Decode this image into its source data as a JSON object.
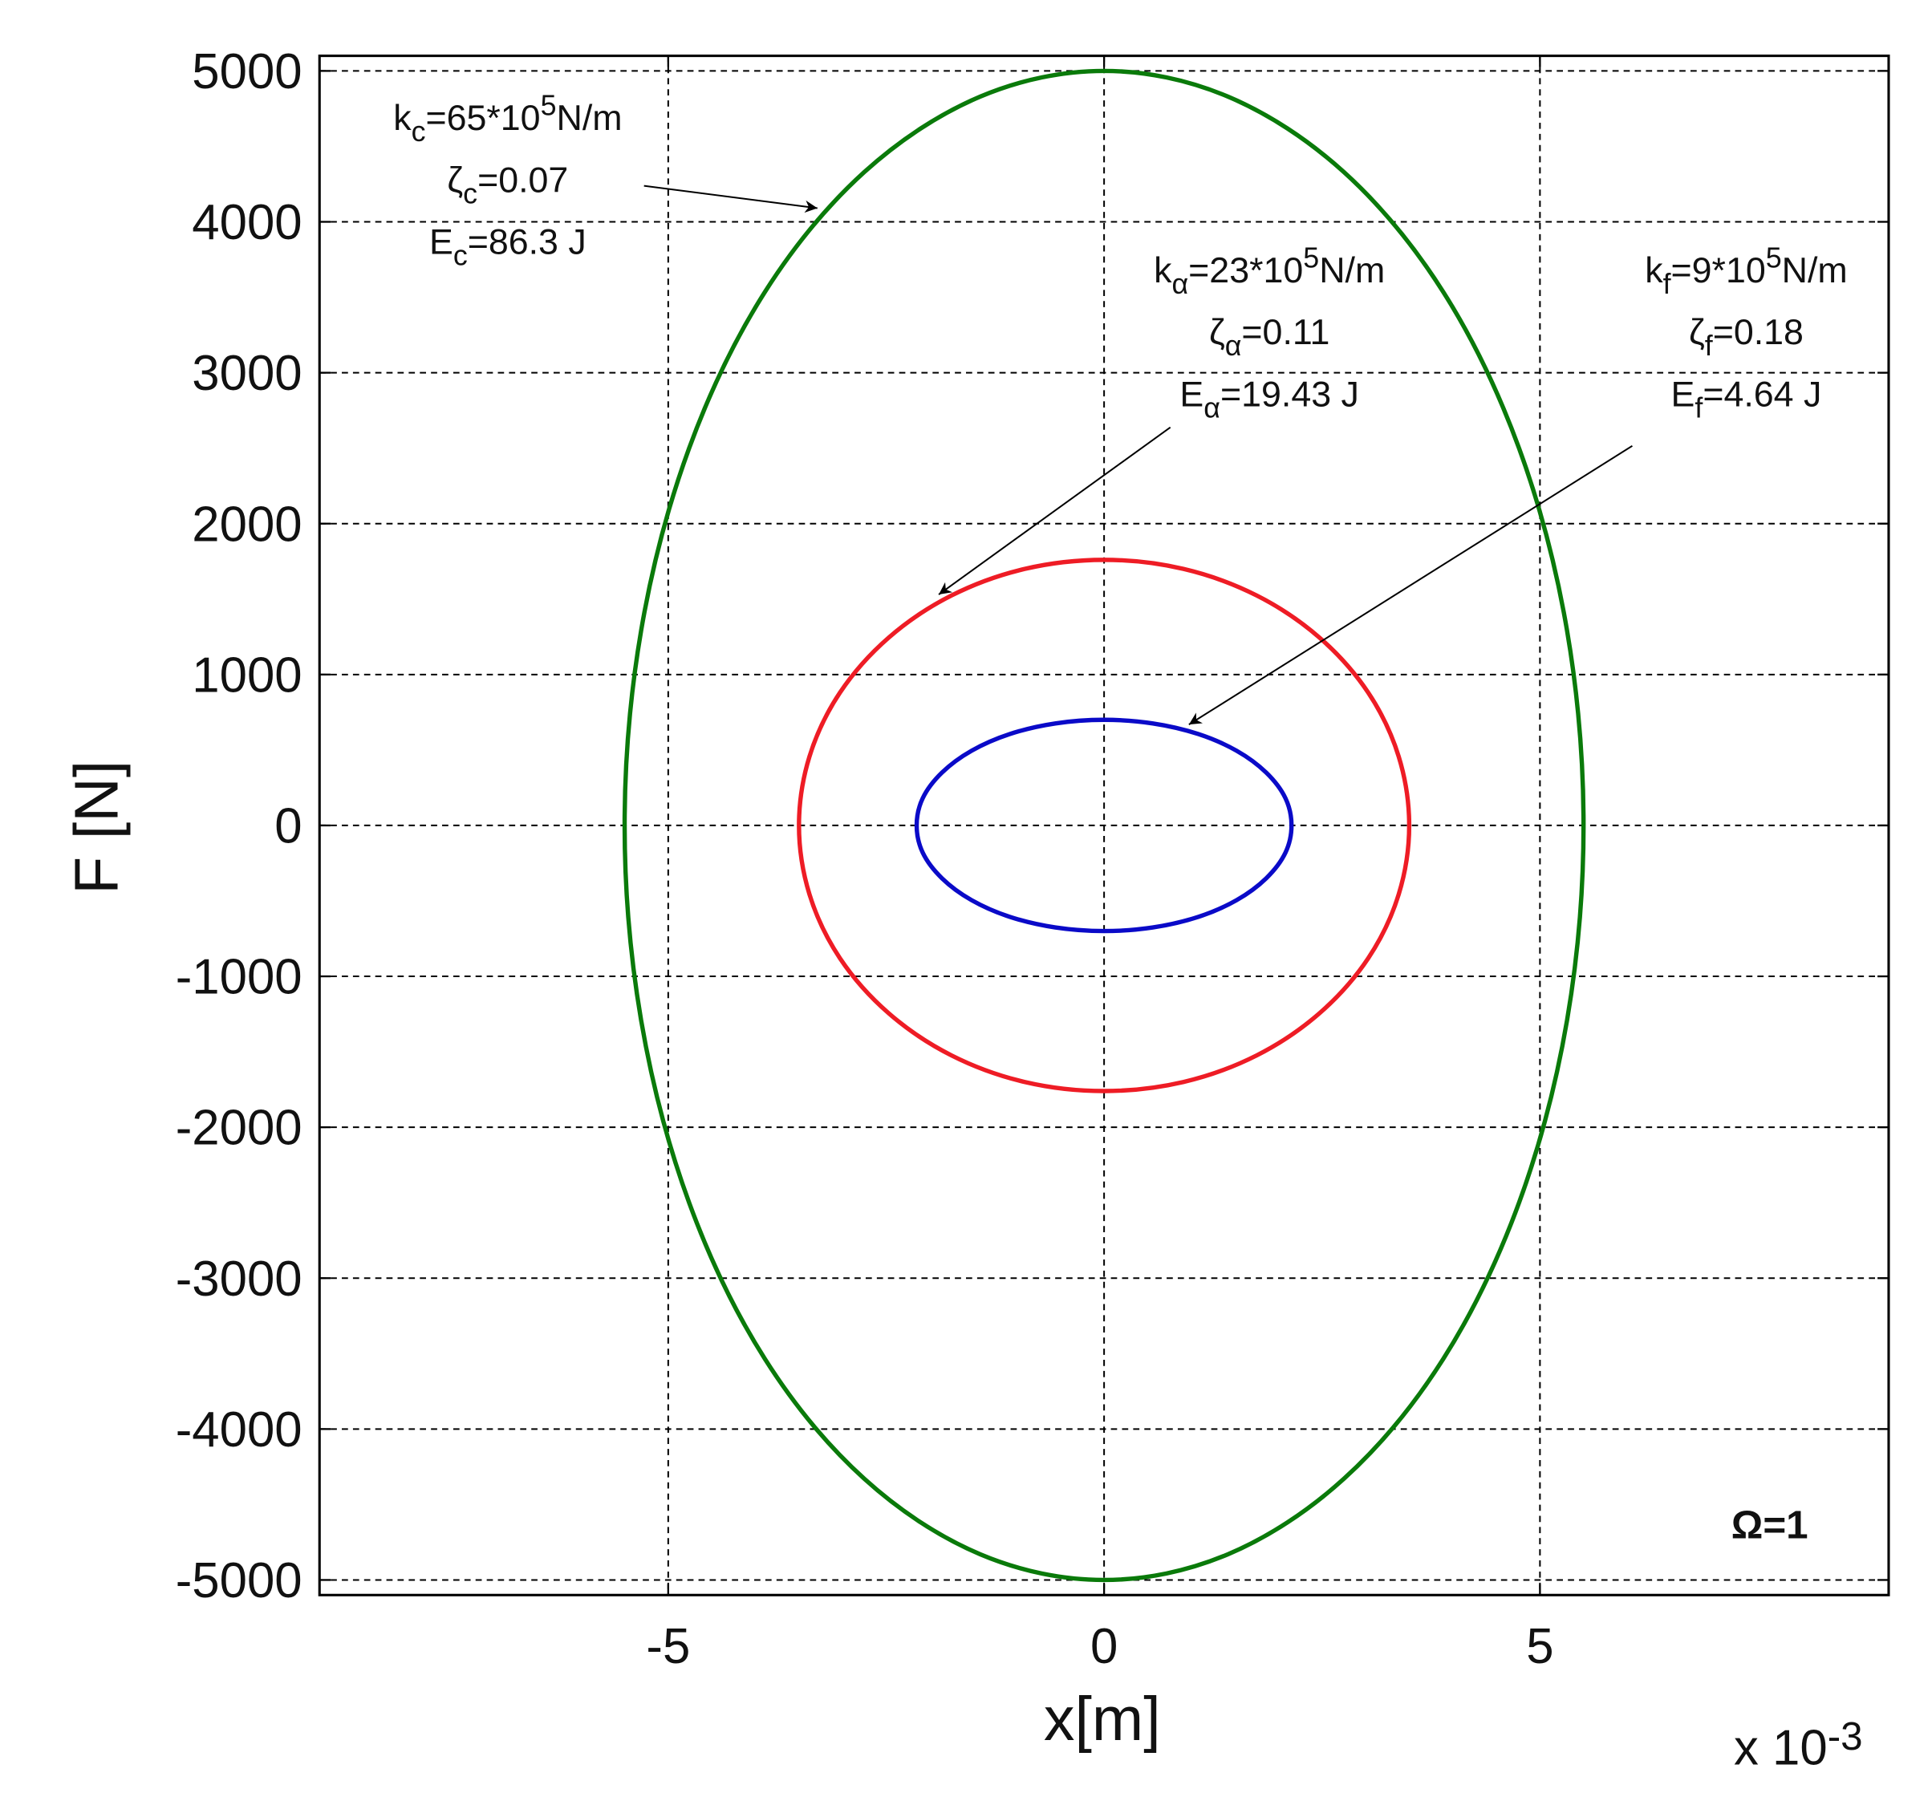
{
  "chart_data": {
    "type": "line",
    "xlabel": "x[m]",
    "ylabel": "F [N]",
    "xlim": [
      -9,
      9
    ],
    "xticks": [
      -5,
      0,
      5
    ],
    "ylim": [
      -5100,
      5100
    ],
    "yticks": [
      -5000,
      -4000,
      -3000,
      -2000,
      -1000,
      0,
      1000,
      2000,
      3000,
      4000,
      5000
    ],
    "grid": true,
    "x_multiplier": [
      {
        "text": "x 10"
      },
      {
        "text": "-3",
        "script": "sup"
      }
    ],
    "corner_label": "Ω=1",
    "series": [
      {
        "color": "#0a7a0a",
        "x": [
          5.5,
          5.31,
          4.76,
          3.89,
          2.75,
          1.42,
          0,
          -1.42,
          -2.75,
          -3.89,
          -4.76,
          -5.31,
          -5.5,
          -5.31,
          -4.76,
          -3.89,
          -2.75,
          -1.42,
          0,
          1.42,
          2.75,
          3.89,
          4.76,
          5.31,
          5.5
        ],
        "values": [
          0,
          1294,
          2500,
          3536,
          4330,
          4830,
          5000,
          4830,
          4330,
          3536,
          2500,
          1294,
          0,
          -1294,
          -2500,
          -3536,
          -4330,
          -4830,
          -5000,
          -4830,
          -4330,
          -3536,
          -2500,
          -1294,
          0
        ]
      },
      {
        "color": "#ee1c25",
        "x": [
          3.5,
          3.38,
          3.03,
          2.47,
          1.75,
          0.91,
          0,
          -0.91,
          -1.75,
          -2.47,
          -3.03,
          -3.38,
          -3.5,
          -3.38,
          -3.03,
          -2.47,
          -1.75,
          -0.91,
          0,
          0.91,
          1.75,
          2.47,
          3.03,
          3.38,
          3.5
        ],
        "values": [
          0,
          456,
          880,
          1245,
          1524,
          1700,
          1760,
          1700,
          1524,
          1245,
          880,
          456,
          0,
          -456,
          -880,
          -1245,
          -1524,
          -1700,
          -1760,
          -1700,
          -1524,
          -1245,
          -880,
          -456,
          0
        ]
      },
      {
        "color": "#0a0ac8",
        "x": [
          2.15,
          2.08,
          1.86,
          1.52,
          1.08,
          0.56,
          0,
          -0.56,
          -1.08,
          -1.52,
          -1.86,
          -2.08,
          -2.15,
          -2.08,
          -1.86,
          -1.52,
          -1.08,
          -0.56,
          0,
          0.56,
          1.08,
          1.52,
          1.86,
          2.08,
          2.15
        ],
        "values": [
          0,
          181,
          350,
          495,
          606,
          676,
          700,
          676,
          606,
          495,
          350,
          181,
          0,
          -181,
          -350,
          -495,
          -606,
          -676,
          -700,
          -676,
          -606,
          -495,
          -350,
          -181,
          0
        ]
      }
    ],
    "annotations": [
      {
        "lines": [
          [
            {
              "text": "k"
            },
            {
              "text": "c",
              "script": "sub"
            },
            {
              "text": "=65*10"
            },
            {
              "text": "5",
              "script": "sup"
            },
            {
              "text": "N/m"
            }
          ],
          [
            {
              "text": "ζ"
            },
            {
              "text": "c",
              "script": "sub"
            },
            {
              "text": "=0.07"
            }
          ],
          [
            {
              "text": "E"
            },
            {
              "text": "c",
              "script": "sub"
            },
            {
              "text": "=86.3 J"
            }
          ]
        ]
      },
      {
        "lines": [
          [
            {
              "text": "k"
            },
            {
              "text": "α",
              "script": "sub"
            },
            {
              "text": "=23*10"
            },
            {
              "text": "5",
              "script": "sup"
            },
            {
              "text": "N/m"
            }
          ],
          [
            {
              "text": "ζ"
            },
            {
              "text": "α",
              "script": "sub"
            },
            {
              "text": "=0.11"
            }
          ],
          [
            {
              "text": "E"
            },
            {
              "text": "α",
              "script": "sub"
            },
            {
              "text": "=19.43 J"
            }
          ]
        ]
      },
      {
        "lines": [
          [
            {
              "text": "k"
            },
            {
              "text": "f",
              "script": "sub"
            },
            {
              "text": "=9*10"
            },
            {
              "text": "5",
              "script": "sup"
            },
            {
              "text": "N/m"
            }
          ],
          [
            {
              "text": "ζ"
            },
            {
              "text": "f",
              "script": "sub"
            },
            {
              "text": "=0.18"
            }
          ],
          [
            {
              "text": "E"
            },
            {
              "text": "f",
              "script": "sub"
            },
            {
              "text": "=4.64 J"
            }
          ]
        ]
      }
    ]
  }
}
